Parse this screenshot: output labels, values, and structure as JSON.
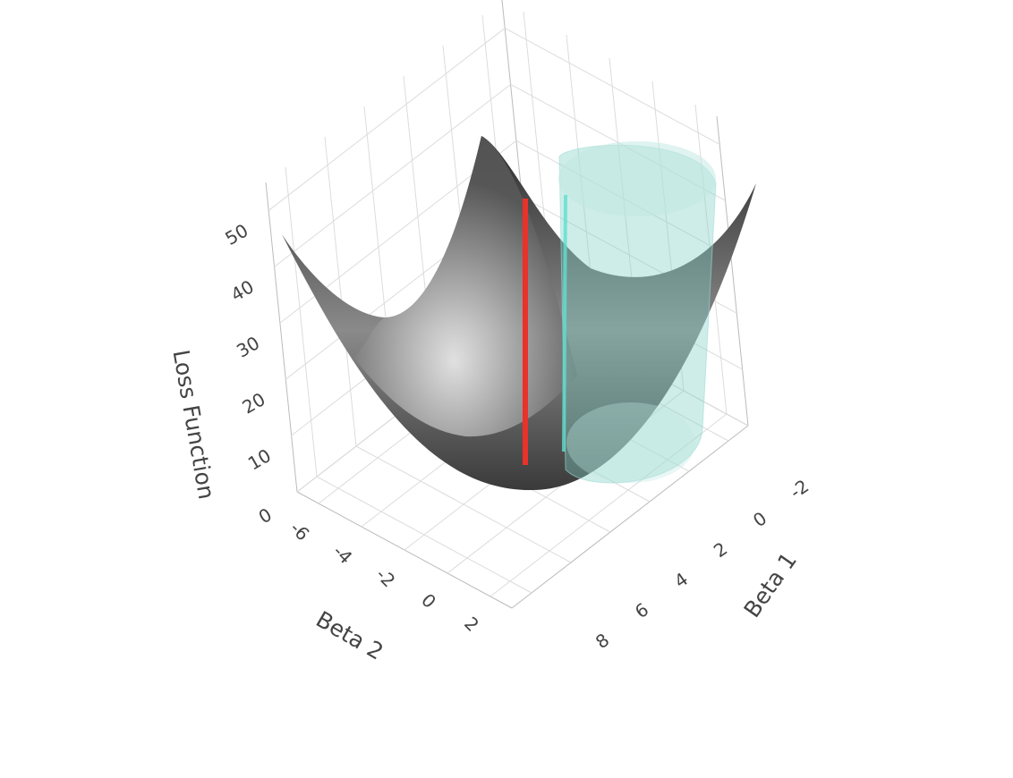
{
  "chart_data": {
    "type": "surface3d",
    "xaxis_title": "Beta 1",
    "xlim": [
      -3,
      9
    ],
    "xticks": [
      -2,
      0,
      2,
      4,
      6,
      8
    ],
    "yaxis_title": "Beta 2",
    "ylim": [
      -7,
      3
    ],
    "yticks": [
      -6,
      -4,
      -2,
      0,
      2
    ],
    "zaxis_title": "Loss Function",
    "zlim": [
      0,
      55
    ],
    "zticks": [
      0,
      10,
      20,
      30,
      40,
      50
    ],
    "grid": true
  }
}
